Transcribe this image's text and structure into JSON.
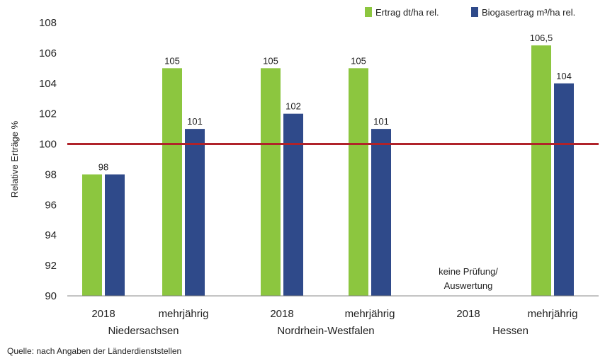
{
  "chart_data": {
    "type": "bar",
    "ylabel": "Relative Erträge %",
    "ylim": [
      90,
      108
    ],
    "yticks": [
      90,
      92,
      94,
      96,
      98,
      100,
      102,
      104,
      106,
      108
    ],
    "reference_line": 100,
    "grid": false,
    "legend_position": "top-right",
    "categories": [
      "2018",
      "mehrjährig",
      "2018",
      "mehrjährig",
      "2018",
      "mehrjährig"
    ],
    "groups": [
      {
        "label": "Niedersachsen",
        "span": [
          0,
          1
        ]
      },
      {
        "label": "Nordrhein-Westfalen",
        "span": [
          2,
          3
        ]
      },
      {
        "label": "Hessen",
        "span": [
          4,
          5
        ]
      }
    ],
    "series": [
      {
        "name": "Ertrag dt/ha rel.",
        "color": "#8cc63f",
        "values": [
          98,
          105,
          105,
          105,
          null,
          106.5
        ],
        "labels": [
          "98",
          "105",
          "105",
          "105",
          "",
          "106,5"
        ]
      },
      {
        "name": "Biogasertrag m³/ha rel.",
        "color": "#2f4a8a",
        "values": [
          98,
          101,
          102,
          101,
          null,
          104
        ],
        "labels": [
          "",
          "101",
          "102",
          "101",
          "",
          "104"
        ]
      }
    ],
    "annotations": [
      {
        "text": "keine Prüfung/",
        "category_index": 4
      },
      {
        "text": "Auswertung",
        "category_index": 4
      }
    ],
    "reference_color": "#b0232a",
    "source": "Quelle: nach Angaben der Länderdienststellen"
  }
}
